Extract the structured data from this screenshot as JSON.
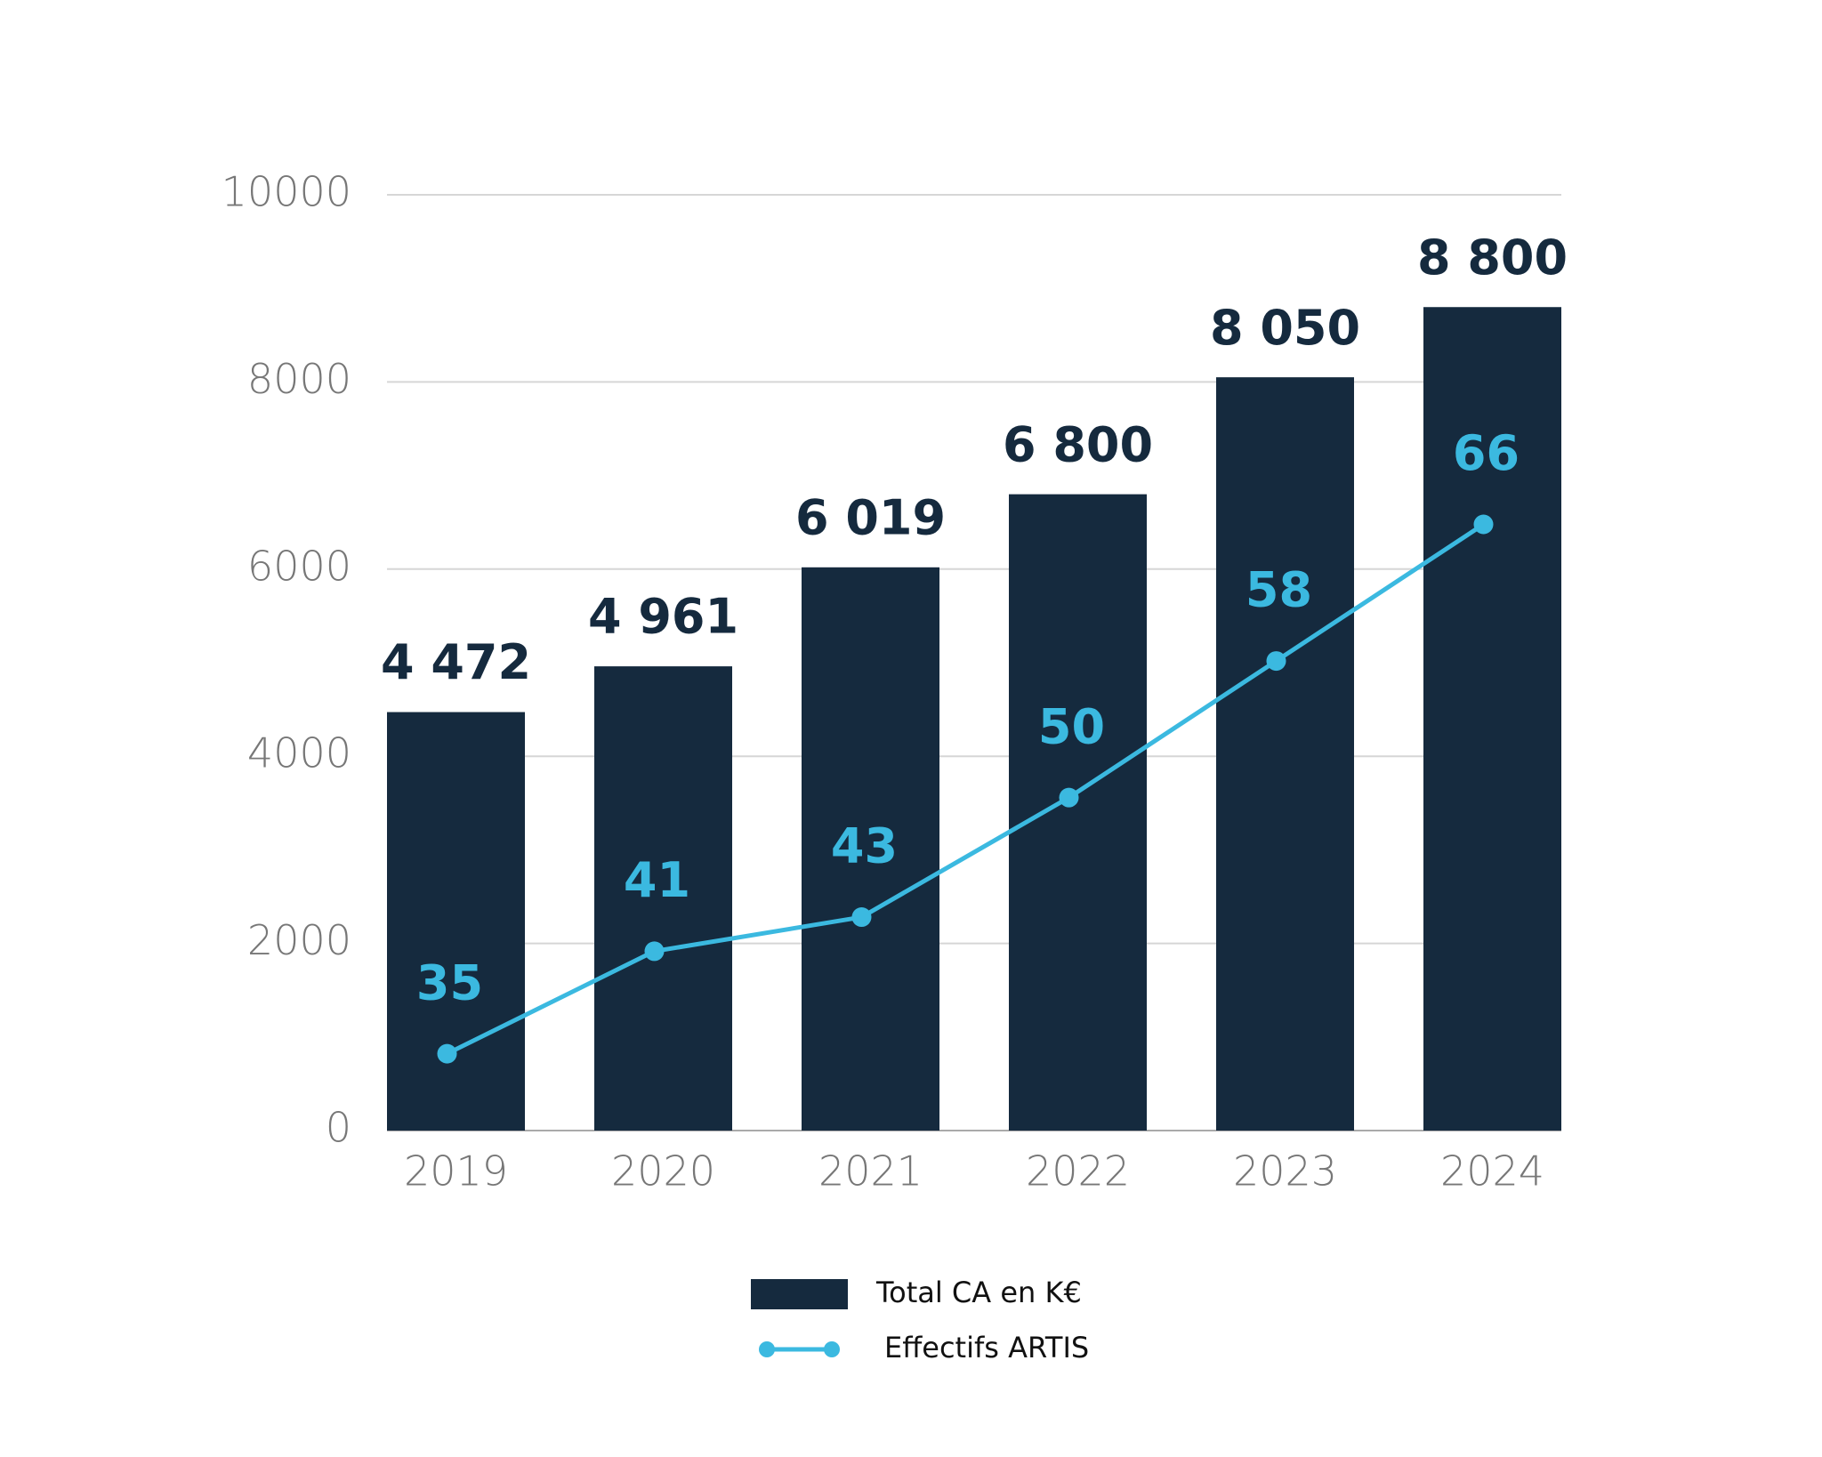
{
  "chart_data": {
    "type": "bar+line",
    "categories": [
      "2019",
      "2020",
      "2021",
      "2022",
      "2023",
      "2024"
    ],
    "series": [
      {
        "name": "Total CA en K€",
        "type": "bar",
        "color": "#152a3e",
        "values": [
          4472,
          4961,
          6019,
          6800,
          8050,
          8800
        ],
        "value_labels": [
          "4 472",
          "4 961",
          "6 019",
          "6 800",
          "8 050",
          "8 800"
        ]
      },
      {
        "name": "Effectifs ARTIS",
        "type": "line",
        "color": "#3bb9e0",
        "axis": "y2",
        "values": [
          35,
          41,
          43,
          50,
          58,
          66
        ]
      }
    ],
    "ylim": [
      0,
      10000
    ],
    "yticks": [
      0,
      2000,
      4000,
      6000,
      8000,
      10000
    ],
    "y2lim": [
      30.5,
      85.3
    ],
    "grid": true,
    "legend": "bottom"
  }
}
